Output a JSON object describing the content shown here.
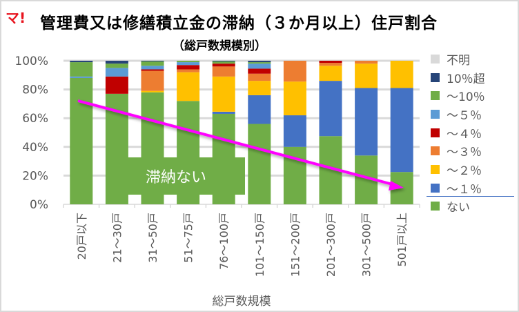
{
  "logo_text": "マ!",
  "chart_data": {
    "type": "bar",
    "stacked": true,
    "title": "管理費又は修繕積立金の滞納（３か月以上）住戸割合",
    "subtitle": "（総戸数規模別）",
    "xlabel": "総戸数規模",
    "ylabel": "",
    "ylim": [
      0,
      100
    ],
    "yticks": [
      "0%",
      "20%",
      "40%",
      "60%",
      "80%",
      "100%"
    ],
    "grid": true,
    "legend_position": "right",
    "categories": [
      "20戸以下",
      "21～30戸",
      "31～50戸",
      "51～75戸",
      "76～100戸",
      "101～150戸",
      "151～200戸",
      "201～300戸",
      "301～500戸",
      "501戸以上"
    ],
    "series": [
      {
        "name": "ない",
        "color": "#70ad47",
        "values": [
          88,
          77,
          78,
          72,
          63,
          56,
          40,
          47.5,
          34,
          22.5
        ]
      },
      {
        "name": "～１％",
        "color": "#4472c4",
        "values": [
          0,
          0,
          0,
          0,
          1.5,
          20,
          22,
          38.5,
          47,
          58.5
        ]
      },
      {
        "name": "～２％",
        "color": "#ffc000",
        "values": [
          0,
          0,
          1,
          20,
          24.5,
          10,
          23.5,
          10.5,
          17,
          19
        ]
      },
      {
        "name": "～３％",
        "color": "#ed7d31",
        "values": [
          0,
          0,
          14,
          2,
          7,
          5,
          14.5,
          2,
          2,
          0
        ]
      },
      {
        "name": "～４％",
        "color": "#c00000",
        "values": [
          0,
          12,
          1,
          3,
          2,
          3.5,
          0,
          1.5,
          0,
          0
        ]
      },
      {
        "name": "～５％",
        "color": "#5b9bd5",
        "values": [
          1,
          6,
          2.5,
          2,
          0,
          3.5,
          0,
          0,
          0,
          0
        ]
      },
      {
        "name": "～10％",
        "color": "#70ad47",
        "values": [
          10,
          3,
          3,
          1,
          1.5,
          1,
          0,
          0,
          0,
          0
        ]
      },
      {
        "name": "10％超",
        "color": "#264478",
        "values": [
          1,
          2,
          0.5,
          0,
          0.5,
          1,
          0,
          0,
          0,
          0
        ]
      },
      {
        "name": "不明",
        "color": "#d9d9d9",
        "values": [
          0,
          0,
          0,
          0,
          0,
          0,
          0,
          0,
          0,
          0
        ]
      }
    ],
    "legend_order": [
      "不明",
      "10％超",
      "～10％",
      "～５％",
      "～４％",
      "～３％",
      "～２％",
      "～１％",
      "ない"
    ],
    "annotation": {
      "text": "滞納ない",
      "arrow_color": "#ff00ff"
    }
  }
}
